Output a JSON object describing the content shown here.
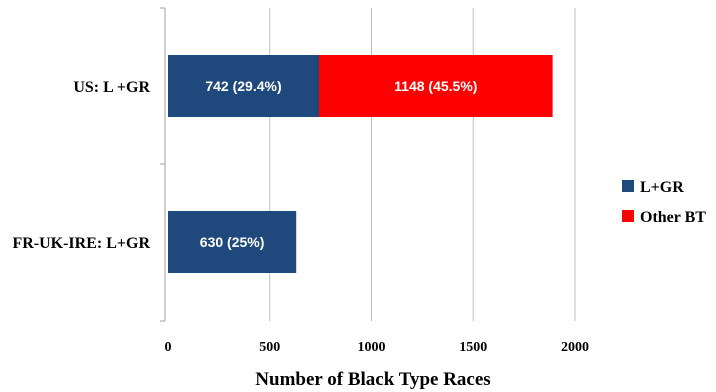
{
  "chart_data": {
    "type": "bar",
    "orientation": "horizontal",
    "stacked": true,
    "categories": [
      "US: L +GR",
      "FR-UK-IRE: L+GR"
    ],
    "series": [
      {
        "name": "L+GR",
        "color": "#1F497D",
        "values": [
          742,
          630
        ],
        "labels": [
          "742 (29.4%)",
          "630 (25%)"
        ]
      },
      {
        "name": "Other BT",
        "color": "#FF0000",
        "values": [
          1148,
          null
        ],
        "labels": [
          "1148 (45.5%)",
          ""
        ]
      }
    ],
    "xlabel": "Number of Black Type Races",
    "ylabel": "",
    "xlim": [
      0,
      2000
    ],
    "xticks": [
      0,
      500,
      1000,
      1500,
      2000
    ],
    "grid": "vertical",
    "legend_position": "right"
  }
}
